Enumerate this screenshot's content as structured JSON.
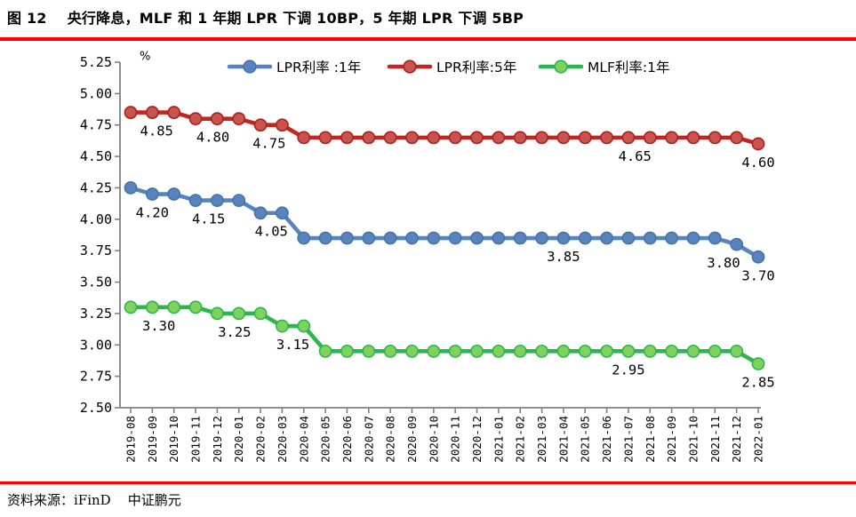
{
  "page": {
    "title": "图 12    央行降息，MLF 和 1 年期 LPR 下调 10BP，5 年期 LPR 下调 5BP",
    "source": "资料来源：iFinD    中证鹏元",
    "rule_color": "#fe0000"
  },
  "chart_data": {
    "type": "line",
    "title": "",
    "unit_label": "%",
    "xlabel": "",
    "ylabel": "%",
    "ylim": [
      2.5,
      5.25
    ],
    "ytick_step": 0.25,
    "ytick_labels": [
      "2.50",
      "2.75",
      "3.00",
      "3.25",
      "3.50",
      "3.75",
      "4.00",
      "4.25",
      "4.50",
      "4.75",
      "5.00",
      "5.25"
    ],
    "grid": false,
    "legend_position": "top",
    "axis_color": "#808080",
    "text_color": "#000000",
    "x": [
      "2019-08",
      "2019-09",
      "2019-10",
      "2019-11",
      "2019-12",
      "2020-01",
      "2020-02",
      "2020-03",
      "2020-04",
      "2020-05",
      "2020-06",
      "2020-07",
      "2020-08",
      "2020-09",
      "2020-10",
      "2020-11",
      "2020-12",
      "2021-01",
      "2021-02",
      "2021-03",
      "2021-04",
      "2021-05",
      "2021-06",
      "2021-07",
      "2021-08",
      "2021-09",
      "2021-10",
      "2021-11",
      "2021-12",
      "2022-01"
    ],
    "series": [
      {
        "name": "LPR利率 :1年",
        "color": "#5884be",
        "marker_fill": "#5884be",
        "marker_stroke": "#4773a9",
        "values": [
          4.25,
          4.2,
          4.2,
          4.15,
          4.15,
          4.15,
          4.05,
          4.05,
          3.85,
          3.85,
          3.85,
          3.85,
          3.85,
          3.85,
          3.85,
          3.85,
          3.85,
          3.85,
          3.85,
          3.85,
          3.85,
          3.85,
          3.85,
          3.85,
          3.85,
          3.85,
          3.85,
          3.85,
          3.8,
          3.7
        ],
        "point_labels": [
          {
            "text": "4.20",
            "x_index": 1,
            "value": 4.2
          },
          {
            "text": "4.15",
            "x_index": 3.6,
            "value": 4.15
          },
          {
            "text": "4.05",
            "x_index": 6.5,
            "value": 4.05
          },
          {
            "text": "3.85",
            "x_index": 20,
            "value": 3.85
          },
          {
            "text": "3.80",
            "x_index": 27.4,
            "value": 3.8
          },
          {
            "text": "3.70",
            "x_index": 29,
            "value": 3.7
          }
        ]
      },
      {
        "name": "LPR利率:5年",
        "color": "#c2261f",
        "marker_fill": "#c9534e",
        "marker_stroke": "#ac211b",
        "values": [
          4.85,
          4.85,
          4.85,
          4.8,
          4.8,
          4.8,
          4.75,
          4.75,
          4.65,
          4.65,
          4.65,
          4.65,
          4.65,
          4.65,
          4.65,
          4.65,
          4.65,
          4.65,
          4.65,
          4.65,
          4.65,
          4.65,
          4.65,
          4.65,
          4.65,
          4.65,
          4.65,
          4.65,
          4.65,
          4.6
        ],
        "point_labels": [
          {
            "text": "4.85",
            "x_index": 1.2,
            "value": 4.85
          },
          {
            "text": "4.80",
            "x_index": 3.8,
            "value": 4.8
          },
          {
            "text": "4.75",
            "x_index": 6.4,
            "value": 4.75
          },
          {
            "text": "4.65",
            "x_index": 23.3,
            "value": 4.65
          },
          {
            "text": "4.60",
            "x_index": 29,
            "value": 4.6
          }
        ]
      },
      {
        "name": "MLF利率:1年",
        "color": "#2db54e",
        "marker_fill": "#7ed35e",
        "marker_stroke": "#2db54e",
        "values": [
          3.3,
          3.3,
          3.3,
          3.3,
          3.25,
          3.25,
          3.25,
          3.15,
          3.15,
          2.95,
          2.95,
          2.95,
          2.95,
          2.95,
          2.95,
          2.95,
          2.95,
          2.95,
          2.95,
          2.95,
          2.95,
          2.95,
          2.95,
          2.95,
          2.95,
          2.95,
          2.95,
          2.95,
          2.95,
          2.85
        ],
        "point_labels": [
          {
            "text": "3.30",
            "x_index": 1.3,
            "value": 3.3
          },
          {
            "text": "3.25",
            "x_index": 4.8,
            "value": 3.25
          },
          {
            "text": "3.15",
            "x_index": 7.5,
            "value": 3.15
          },
          {
            "text": "2.95",
            "x_index": 23,
            "value": 2.95
          },
          {
            "text": "2.85",
            "x_index": 29,
            "value": 2.85
          }
        ]
      }
    ]
  }
}
